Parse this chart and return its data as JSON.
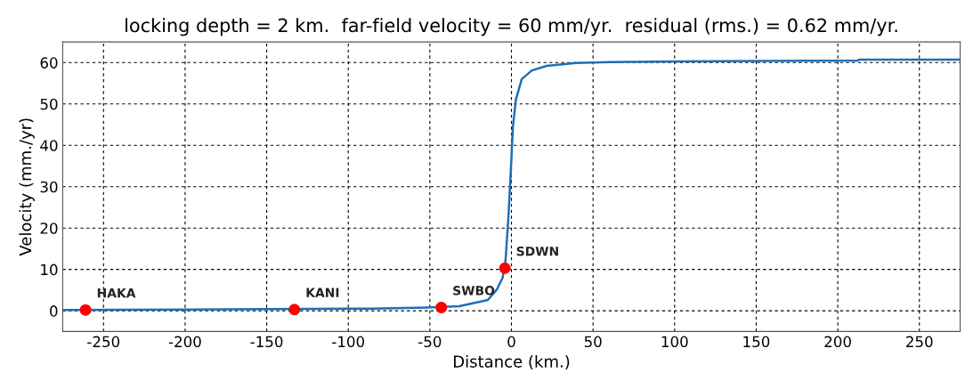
{
  "chart_data": {
    "type": "line",
    "title": "locking depth = 2 km.  far-field velocity = 60 mm/yr.  residual (rms.) = 0.62 mm/yr.",
    "xlabel": "Distance (km.)",
    "ylabel": "Velocity (mm./yr)",
    "series": [
      {
        "color": "#1f6fb5",
        "x": [
          -275,
          -200,
          -150,
          -100,
          -86.5,
          -52,
          -32,
          -14.5,
          -9,
          -5.4,
          -3.6,
          -1.8,
          -0.4,
          0.9,
          2.7,
          6.3,
          12.5,
          21.6,
          39.6,
          60,
          100,
          150,
          212,
          213,
          275
        ],
        "values": [
          0.2,
          0.3,
          0.4,
          0.5,
          0.5,
          0.8,
          1.1,
          2.6,
          5.1,
          8,
          12.3,
          23,
          33.8,
          44.5,
          51,
          56,
          58.1,
          59.2,
          59.9,
          60.1,
          60.3,
          60.4,
          60.5,
          60.7,
          60.7
        ]
      },
      {
        "type": "scatter",
        "color": "#ff0000",
        "x": [
          -261,
          -133,
          -43,
          -4
        ],
        "values": [
          0.2,
          0.3,
          0.8,
          10.3
        ]
      }
    ],
    "annotations": [
      {
        "text": "HAKA",
        "x": -261,
        "y": 0.2
      },
      {
        "text": "KANI",
        "x": -133,
        "y": 0.3
      },
      {
        "text": "SWBO",
        "x": -43,
        "y": 0.8
      },
      {
        "text": "SDWN",
        "x": -4,
        "y": 10.3
      }
    ],
    "xlim": [
      -275,
      275
    ],
    "xticks": [
      -250,
      -200,
      -150,
      -100,
      -50,
      0,
      50,
      100,
      150,
      200,
      250
    ],
    "ylim": [
      -5,
      65
    ],
    "yticks": [
      0,
      10,
      20,
      30,
      40,
      50,
      60
    ],
    "grid": true
  }
}
